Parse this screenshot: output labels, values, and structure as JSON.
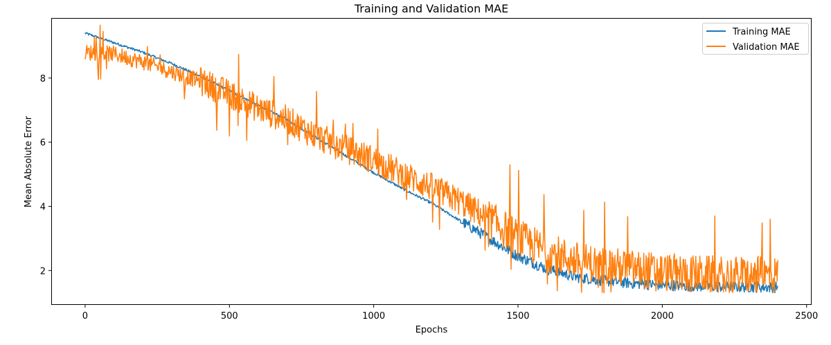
{
  "chart_data": {
    "type": "line",
    "title": "Training and Validation MAE",
    "xlabel": "Epochs",
    "ylabel": "Mean Absolute Error",
    "xlim": [
      -115,
      2515
    ],
    "ylim": [
      0.95,
      9.85
    ],
    "x_ticks": [
      0,
      500,
      1000,
      1500,
      2000,
      2500
    ],
    "y_ticks": [
      2,
      4,
      6,
      8
    ],
    "legend_position": "upper right",
    "grid": false,
    "series": [
      {
        "name": "Training MAE",
        "color": "#1f77b4",
        "x": [
          0,
          100,
          200,
          300,
          400,
          500,
          600,
          700,
          800,
          900,
          1000,
          1100,
          1200,
          1300,
          1400,
          1500,
          1600,
          1700,
          1800,
          1900,
          2000,
          2100,
          2200,
          2300,
          2400
        ],
        "values": [
          9.4,
          9.1,
          8.8,
          8.45,
          8.05,
          7.6,
          7.15,
          6.7,
          6.15,
          5.6,
          5.05,
          4.55,
          4.1,
          3.55,
          3.0,
          2.45,
          2.05,
          1.8,
          1.68,
          1.6,
          1.55,
          1.52,
          1.5,
          1.49,
          1.48
        ]
      },
      {
        "name": "Validation MAE",
        "color": "#ff7f0e",
        "x": [
          0,
          100,
          200,
          300,
          400,
          500,
          600,
          700,
          800,
          900,
          1000,
          1100,
          1200,
          1300,
          1400,
          1500,
          1600,
          1700,
          1800,
          1900,
          2000,
          2100,
          2200,
          2300,
          2400
        ],
        "values": [
          8.8,
          8.75,
          8.5,
          8.2,
          7.9,
          7.5,
          7.05,
          6.7,
          6.2,
          5.8,
          5.45,
          5.0,
          4.6,
          4.15,
          3.6,
          3.0,
          2.6,
          2.3,
          2.15,
          2.05,
          1.95,
          1.9,
          1.85,
          1.85,
          1.85
        ]
      }
    ]
  }
}
